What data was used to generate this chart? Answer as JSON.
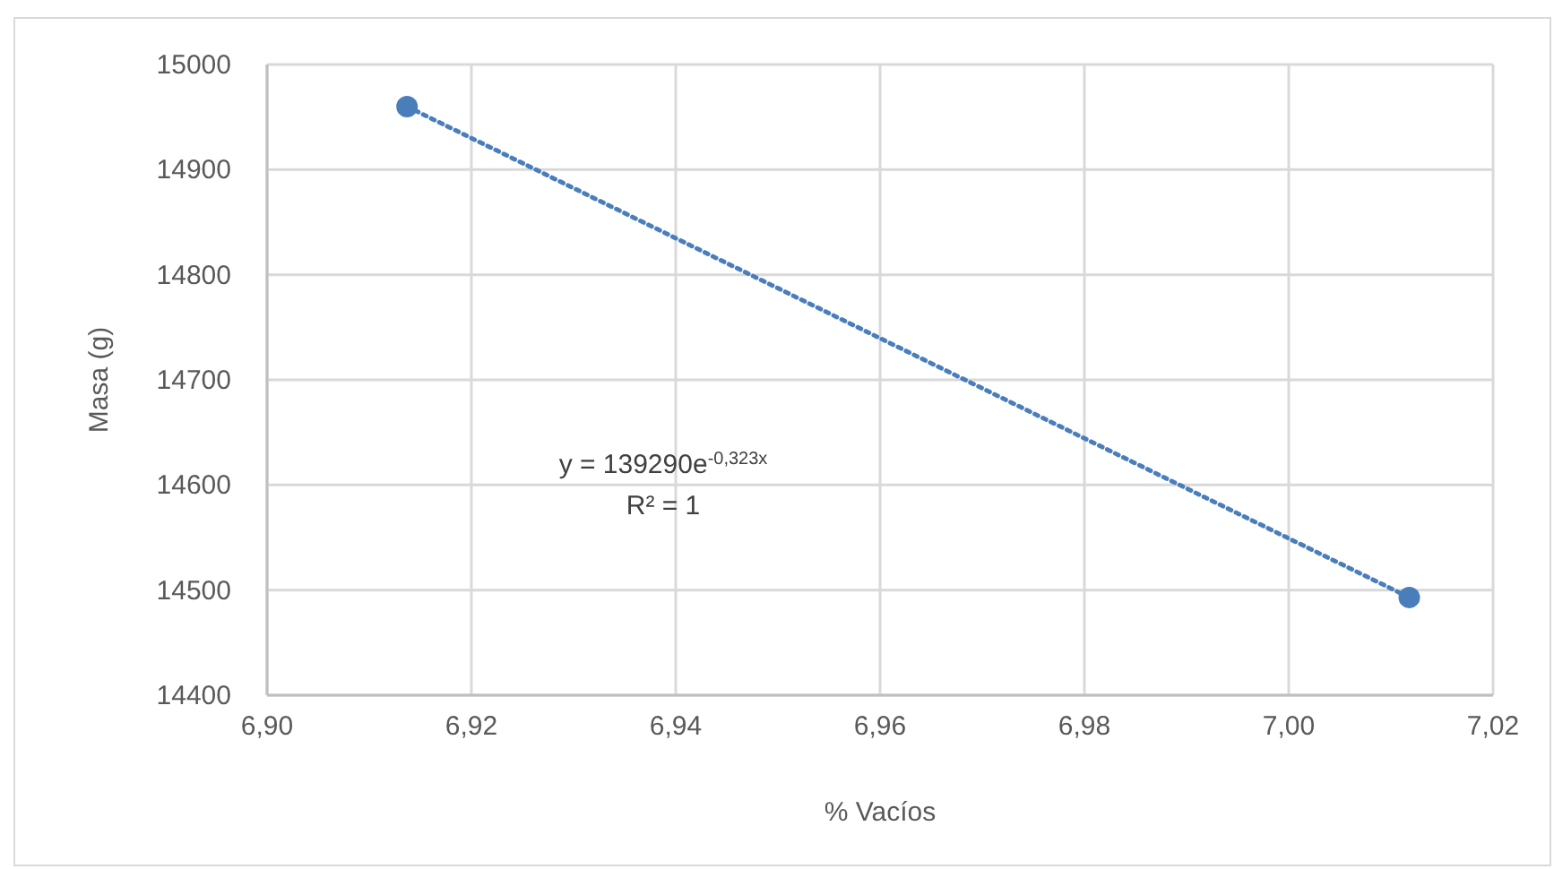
{
  "chart_data": {
    "type": "scatter",
    "xlabel": "% Vacíos",
    "ylabel": "Masa (g)",
    "xlim": [
      6.9,
      7.02
    ],
    "xticks": [
      {
        "value": 6.9,
        "label": "6,90"
      },
      {
        "value": 6.92,
        "label": "6,92"
      },
      {
        "value": 6.94,
        "label": "6,94"
      },
      {
        "value": 6.96,
        "label": "6,96"
      },
      {
        "value": 6.98,
        "label": "6,98"
      },
      {
        "value": 7,
        "label": "7,00"
      },
      {
        "value": 7.02,
        "label": "7,02"
      }
    ],
    "ylim": [
      14400,
      15000
    ],
    "yticks": [
      14400,
      14500,
      14600,
      14700,
      14800,
      14900,
      15000
    ],
    "grid": true,
    "marker": "circle",
    "x": [
      6.9137,
      7.0118
    ],
    "series": [
      {
        "color": "#4a7ebb",
        "values": [
          14960,
          14493
        ]
      },
      {
        "type": "line",
        "color": "#4a7ebb",
        "line_style": "dotted",
        "marker": "none",
        "values": [
          14960,
          14493
        ]
      }
    ],
    "annotations": [
      "y = 139290e$^{-0,323x}$",
      "R² = 1"
    ]
  }
}
